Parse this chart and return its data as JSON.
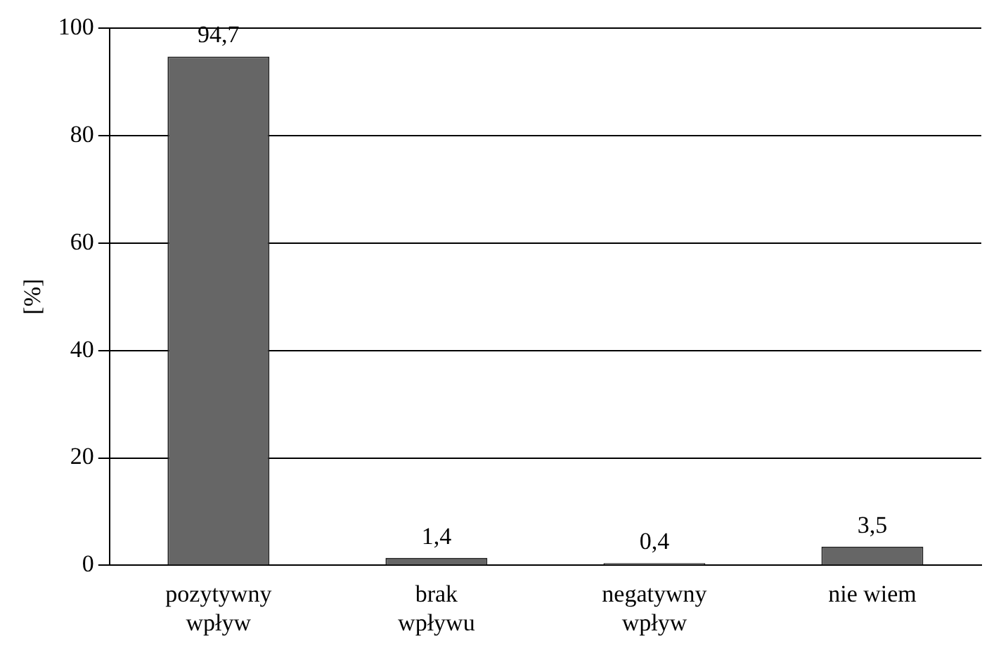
{
  "chart_data": {
    "type": "bar",
    "ylabel": "[%]",
    "categories": [
      "pozytywny\nwpływ",
      "brak\nwpływu",
      "negatywny\nwpływ",
      "nie wiem"
    ],
    "values": [
      94.7,
      1.4,
      0.4,
      3.5
    ],
    "color": "#666666",
    "ylim": [
      0,
      100
    ],
    "yticks": [
      0,
      20,
      40,
      60,
      80,
      100
    ],
    "grid": "y",
    "data_labels": true,
    "value_labels": [
      "94,7",
      "1,4",
      "0,4",
      "3,5"
    ]
  }
}
